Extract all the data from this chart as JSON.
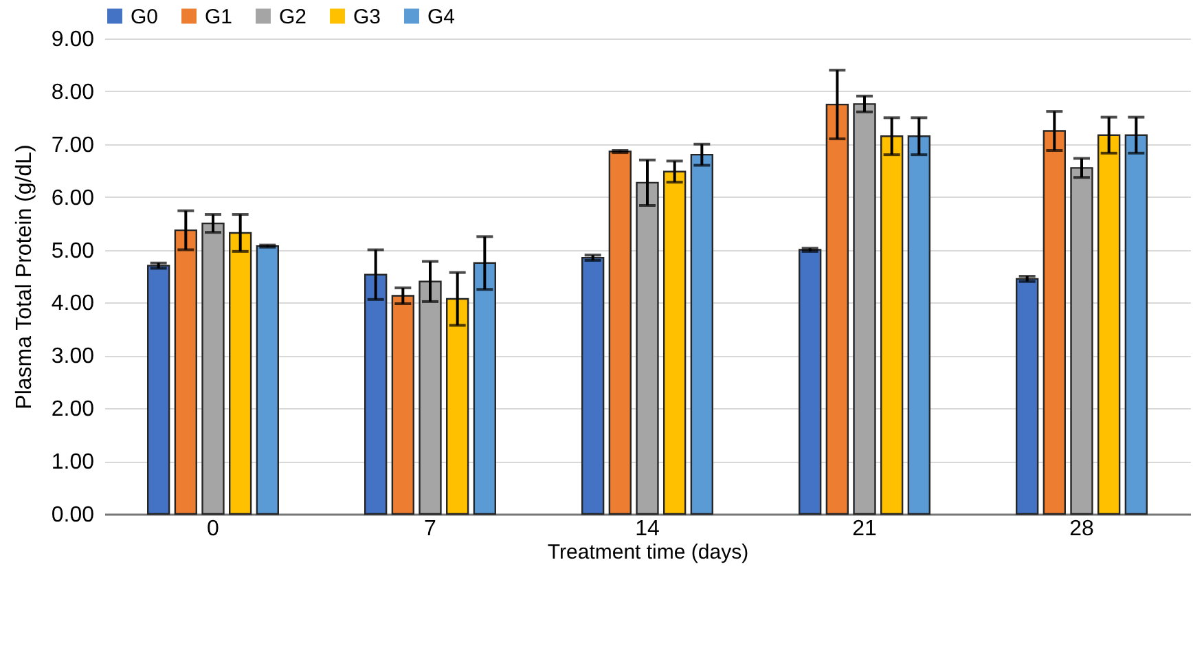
{
  "chart_data": {
    "type": "bar",
    "xlabel": "Treatment time (days)",
    "ylabel": "Plasma Total Protein (g/dL)",
    "categories": [
      "0",
      "7",
      "14",
      "21",
      "28"
    ],
    "series": [
      {
        "name": "G0",
        "color": "#4472c4",
        "values": [
          4.7,
          4.53,
          4.85,
          5.0,
          4.45
        ],
        "errors": [
          0.05,
          0.47,
          0.05,
          0.03,
          0.05
        ]
      },
      {
        "name": "G1",
        "color": "#ed7d31",
        "values": [
          5.37,
          4.13,
          6.86,
          7.75,
          7.25
        ],
        "errors": [
          0.37,
          0.15,
          0.02,
          0.65,
          0.37
        ]
      },
      {
        "name": "G2",
        "color": "#a5a5a5",
        "values": [
          5.5,
          4.4,
          6.27,
          7.76,
          6.55
        ],
        "errors": [
          0.17,
          0.38,
          0.43,
          0.15,
          0.18
        ]
      },
      {
        "name": "G3",
        "color": "#ffc000",
        "values": [
          5.32,
          4.07,
          6.48,
          7.15,
          7.17
        ],
        "errors": [
          0.35,
          0.5,
          0.2,
          0.35,
          0.34
        ]
      },
      {
        "name": "G4",
        "color": "#5b9bd5",
        "values": [
          5.07,
          4.75,
          6.8,
          7.15,
          7.17
        ],
        "errors": [
          0.02,
          0.5,
          0.2,
          0.35,
          0.34
        ]
      }
    ],
    "ylim": [
      0,
      9
    ],
    "yticks": [
      {
        "value": 0,
        "label": "0.00"
      },
      {
        "value": 1,
        "label": "1.00"
      },
      {
        "value": 2,
        "label": "2.00"
      },
      {
        "value": 3,
        "label": "3.00"
      },
      {
        "value": 4,
        "label": "4.00"
      },
      {
        "value": 5,
        "label": "5.00"
      },
      {
        "value": 6,
        "label": "6.00"
      },
      {
        "value": 7,
        "label": "7.00"
      },
      {
        "value": 8,
        "label": "8.00"
      },
      {
        "value": 9,
        "label": "9.00"
      }
    ],
    "grid": "y",
    "legend": "top"
  }
}
